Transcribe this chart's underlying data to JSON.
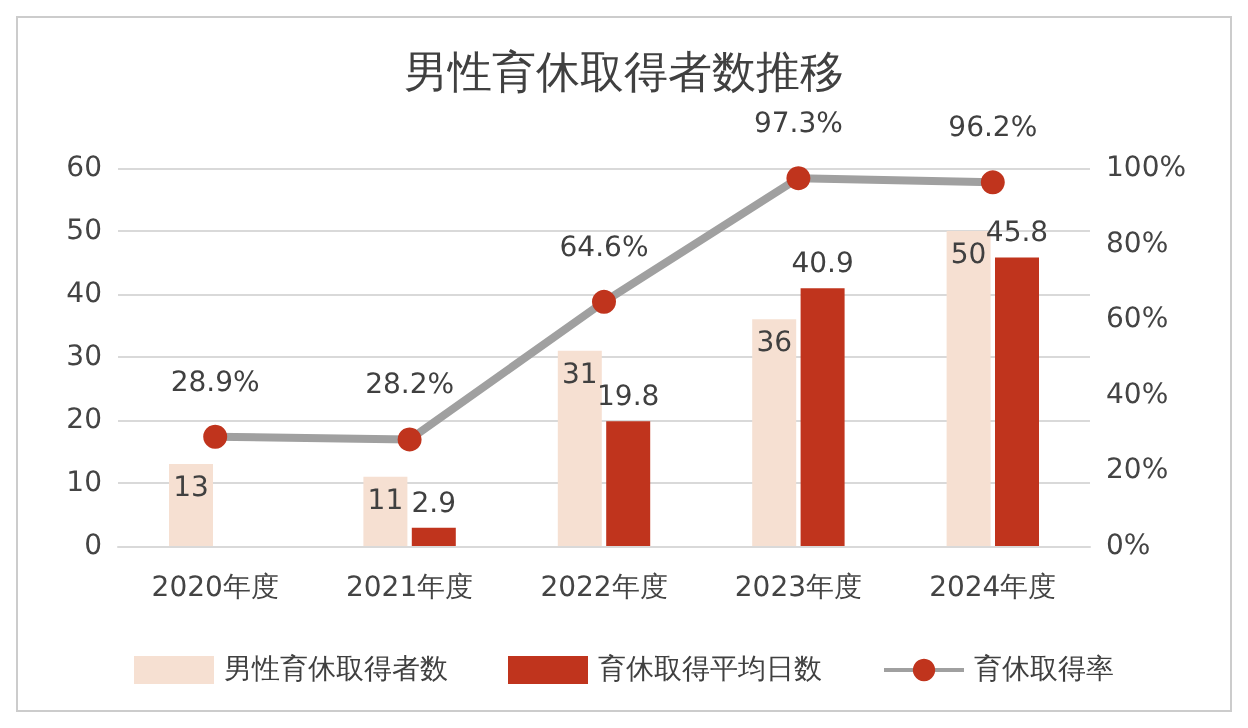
{
  "chart_data": {
    "type": "bar",
    "title": "男性育休取得者数推移",
    "categories": [
      "2020年度",
      "2021年度",
      "2022年度",
      "2023年度",
      "2024年度"
    ],
    "series": [
      {
        "name": "男性育休取得者数",
        "color": "#f6e0d2",
        "values": [
          13,
          11,
          31,
          36,
          50
        ],
        "value_labels": [
          "13",
          "11",
          "31",
          "36",
          "50"
        ]
      },
      {
        "name": "育休取得平均日数",
        "color": "#c0341d",
        "values": [
          null,
          2.9,
          19.8,
          40.9,
          45.8
        ],
        "value_labels": [
          null,
          "2.9",
          "19.8",
          "40.9",
          "45.8"
        ]
      },
      {
        "name": "育休取得率",
        "type": "line",
        "axis": "y2",
        "color": "#a0a0a0",
        "values": [
          28.9,
          28.2,
          64.6,
          97.3,
          96.2
        ],
        "value_labels": [
          "28.9%",
          "28.2%",
          "64.6%",
          "97.3%",
          "96.2%"
        ]
      }
    ],
    "ylim": [
      0,
      60
    ],
    "yticks": [
      0,
      10,
      20,
      30,
      40,
      50,
      60
    ],
    "y2lim": [
      0,
      100
    ],
    "y2ticks": [
      {
        "value": 0,
        "label": "0%"
      },
      {
        "value": 20,
        "label": "20%"
      },
      {
        "value": 40,
        "label": "40%"
      },
      {
        "value": 60,
        "label": "60%"
      },
      {
        "value": 80,
        "label": "80%"
      },
      {
        "value": 100,
        "label": "100%"
      }
    ],
    "grid": "y",
    "legend": "bottom",
    "marker": "circle",
    "line_style": "solid"
  }
}
